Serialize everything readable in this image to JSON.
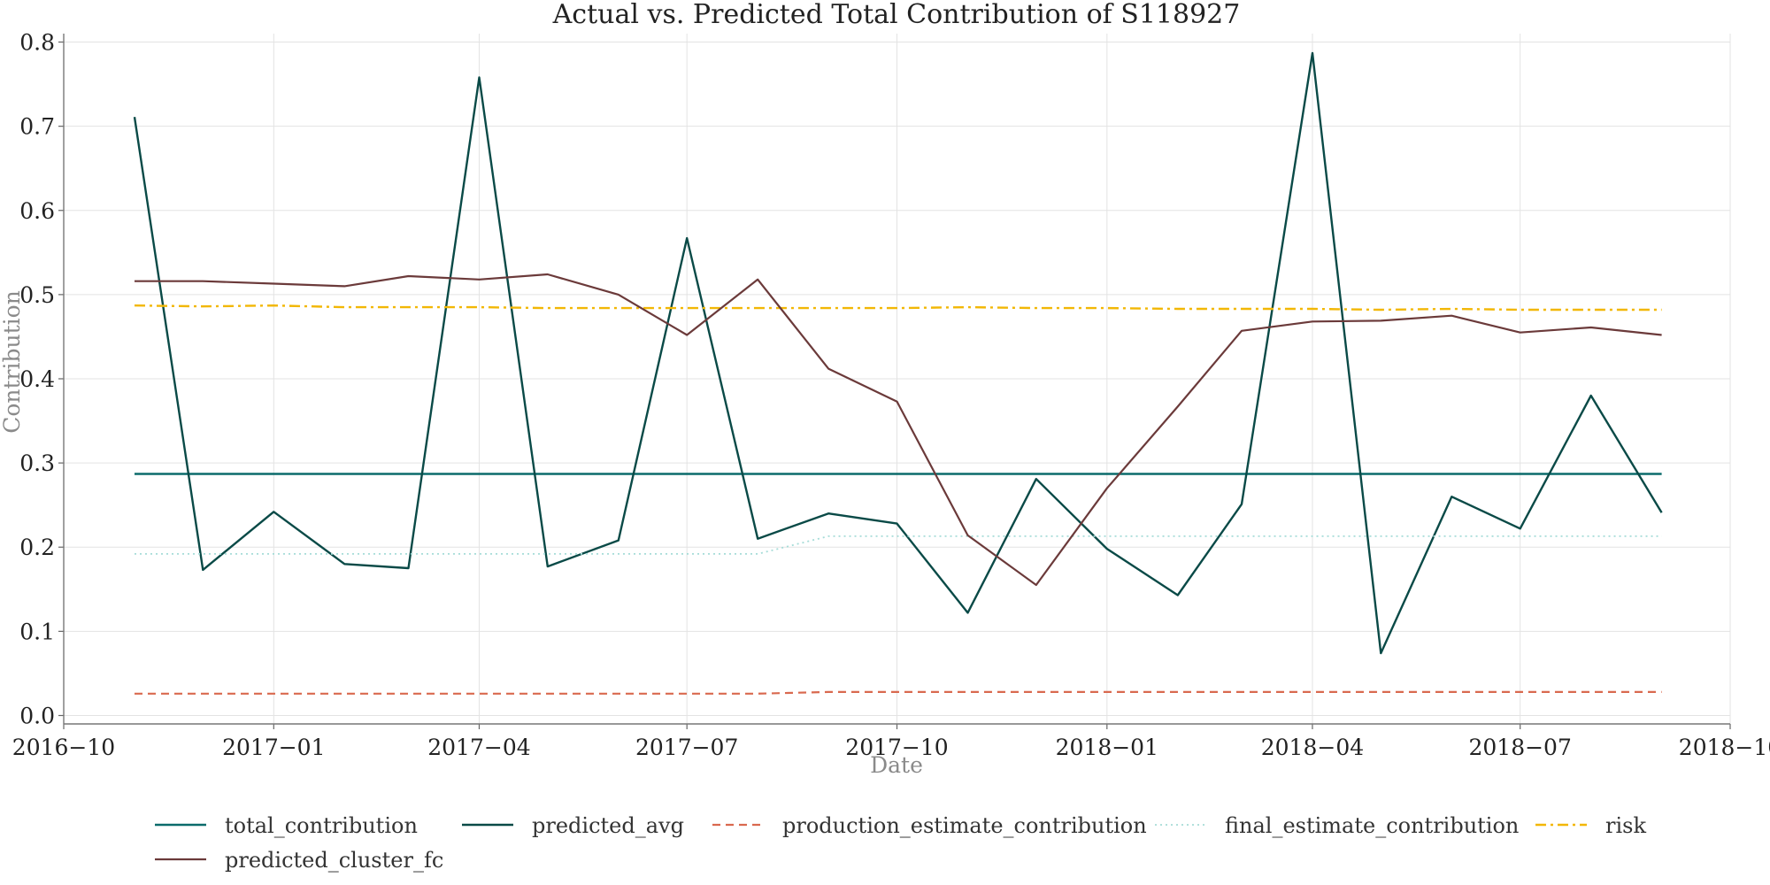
{
  "chart_data": {
    "type": "line",
    "title": "Actual vs. Predicted Total Contribution of S118927",
    "xlabel": "Date",
    "ylabel": "Contribution",
    "xlim": [
      "2016-10-01",
      "2018-10-01"
    ],
    "ylim": [
      -0.01,
      0.81
    ],
    "x_ticks": [
      "2016-10",
      "2017-01",
      "2017-04",
      "2017-07",
      "2017-10",
      "2018-01",
      "2018-04",
      "2018-07",
      "2018-10"
    ],
    "y_ticks": [
      "0.0",
      "0.1",
      "0.2",
      "0.3",
      "0.4",
      "0.5",
      "0.6",
      "0.7",
      "0.8"
    ],
    "grid": true,
    "legend_position": "bottom",
    "x": [
      "2016-11-01",
      "2016-12-01",
      "2017-01-01",
      "2017-02-01",
      "2017-03-01",
      "2017-04-01",
      "2017-05-01",
      "2017-06-01",
      "2017-07-01",
      "2017-08-01",
      "2017-09-01",
      "2017-10-01",
      "2017-11-01",
      "2017-12-01",
      "2018-01-01",
      "2018-02-01",
      "2018-03-01",
      "2018-04-01",
      "2018-05-01",
      "2018-06-01",
      "2018-07-01",
      "2018-08-01",
      "2018-09-01"
    ],
    "series": [
      {
        "name": "total_contribution",
        "color": "#0b6b6b",
        "dash": "",
        "width": 2.4,
        "values": [
          0.287,
          0.287,
          0.287,
          0.287,
          0.287,
          0.287,
          0.287,
          0.287,
          0.287,
          0.287,
          0.287,
          0.287,
          0.287,
          0.287,
          0.287,
          0.287,
          0.287,
          0.287,
          0.287,
          0.287,
          0.287,
          0.287,
          0.287
        ]
      },
      {
        "name": "predicted_avg",
        "color": "#0a4a47",
        "dash": "",
        "width": 2.4,
        "values": [
          0.711,
          0.173,
          0.242,
          0.18,
          0.175,
          0.758,
          0.177,
          0.208,
          0.567,
          0.21,
          0.24,
          0.228,
          0.122,
          0.281,
          0.198,
          0.143,
          0.251,
          0.787,
          0.074,
          0.26,
          0.222,
          0.38,
          0.241
        ]
      },
      {
        "name": "production_estimate_contribution",
        "color": "#d9694f",
        "dash": "9,6",
        "width": 2.2,
        "values": [
          0.026,
          0.026,
          0.026,
          0.026,
          0.026,
          0.026,
          0.026,
          0.026,
          0.026,
          0.026,
          0.028,
          0.028,
          0.028,
          0.028,
          0.028,
          0.028,
          0.028,
          0.028,
          0.028,
          0.028,
          0.028,
          0.028,
          0.028
        ]
      },
      {
        "name": "final_estimate_contribution",
        "color": "#a6dcd8",
        "dash": "2,4",
        "width": 1.8,
        "values": [
          0.192,
          0.192,
          0.192,
          0.192,
          0.192,
          0.192,
          0.192,
          0.192,
          0.192,
          0.192,
          0.213,
          0.213,
          0.213,
          0.213,
          0.213,
          0.213,
          0.213,
          0.213,
          0.213,
          0.213,
          0.213,
          0.213,
          0.213
        ]
      },
      {
        "name": "risk",
        "color": "#f2b705",
        "dash": "12,5,3,5",
        "width": 2.4,
        "values": [
          0.487,
          0.486,
          0.487,
          0.485,
          0.485,
          0.485,
          0.484,
          0.484,
          0.484,
          0.484,
          0.484,
          0.484,
          0.485,
          0.484,
          0.484,
          0.483,
          0.483,
          0.483,
          0.482,
          0.483,
          0.482,
          0.482,
          0.482
        ]
      },
      {
        "name": "predicted_cluster_fc",
        "color": "#6b3a3a",
        "dash": "",
        "width": 2.2,
        "values": [
          0.516,
          0.516,
          0.513,
          0.51,
          0.522,
          0.518,
          0.524,
          0.5,
          0.452,
          0.518,
          0.412,
          0.373,
          0.214,
          0.155,
          0.27,
          0.367,
          0.457,
          0.468,
          0.469,
          0.475,
          0.455,
          0.461,
          0.452
        ]
      }
    ]
  }
}
